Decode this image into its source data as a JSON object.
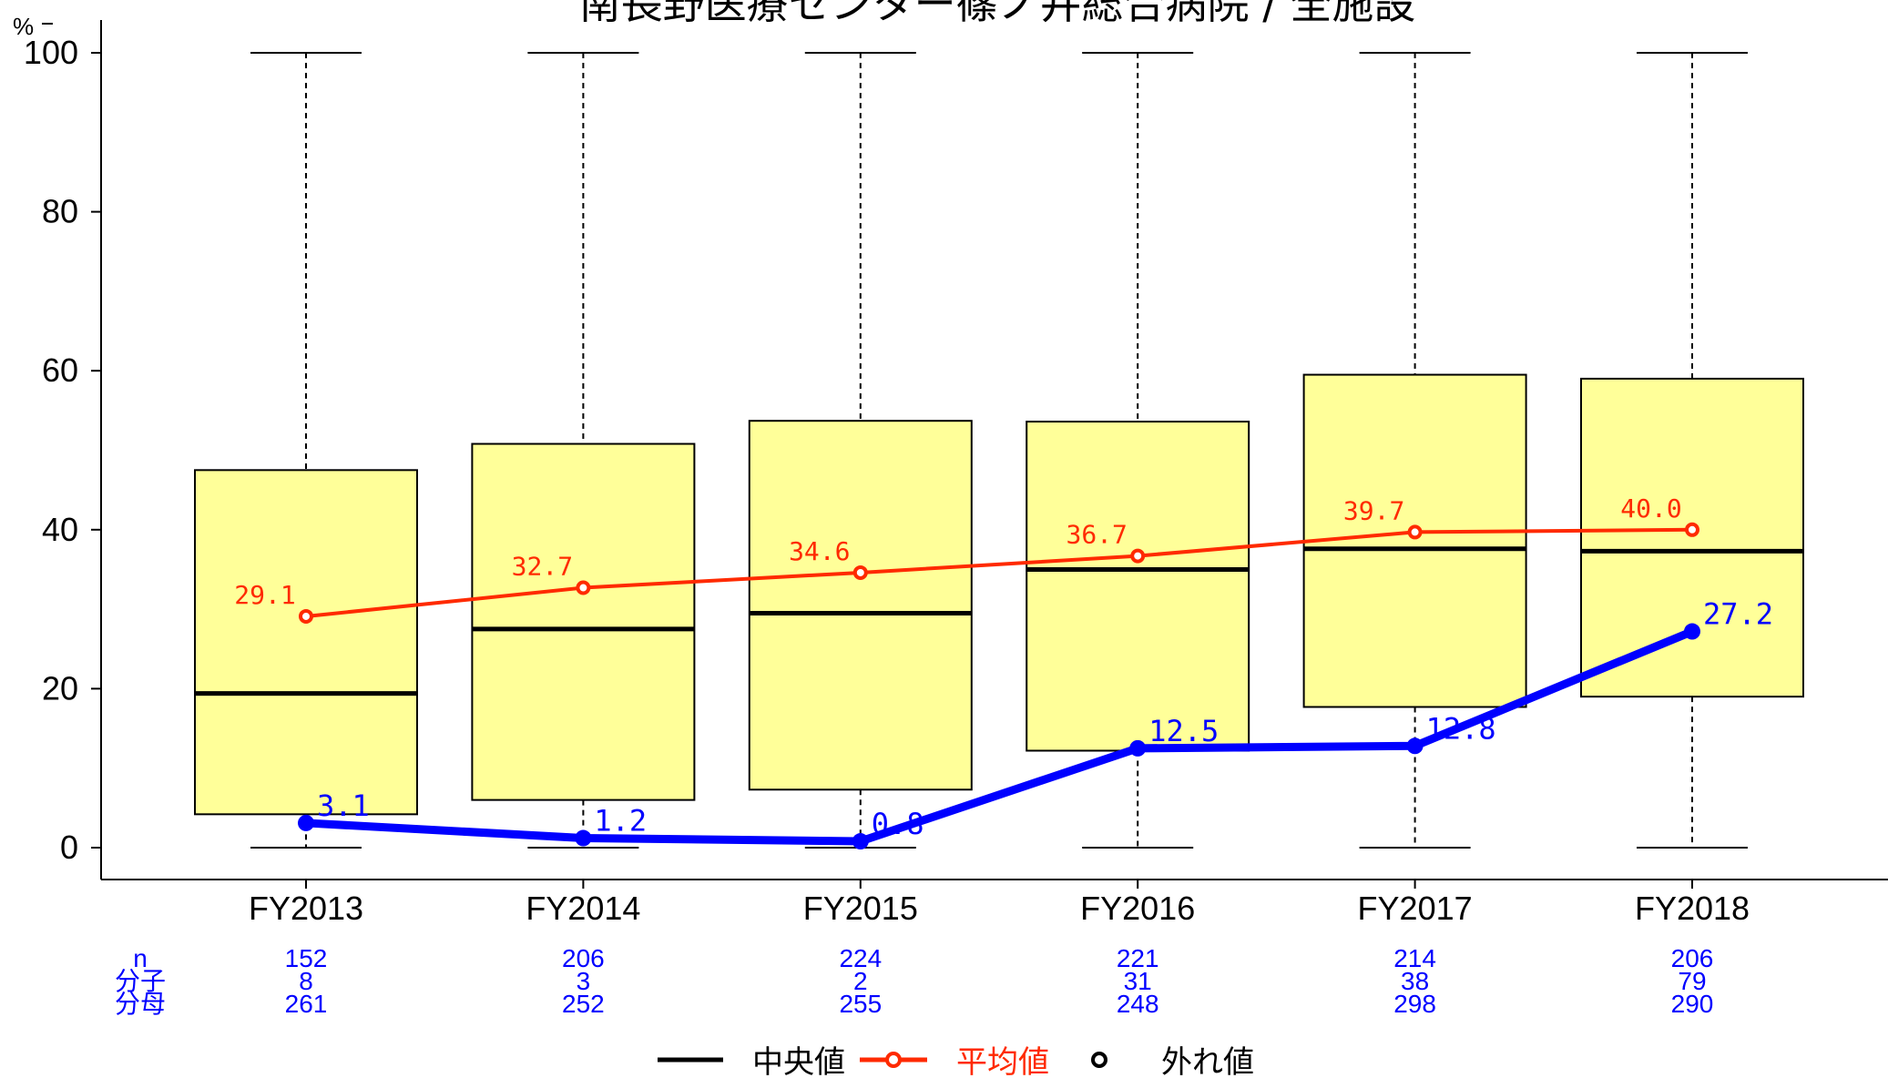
{
  "chart_data": {
    "type": "box",
    "title": "南長野医療センター篠ノ井総合病院 / 全施設",
    "unit": "%",
    "ylim": [
      0,
      100
    ],
    "yticks": [
      0,
      20,
      40,
      60,
      80,
      100
    ],
    "categories": [
      "FY2013",
      "FY2014",
      "FY2015",
      "FY2016",
      "FY2017",
      "FY2018"
    ],
    "boxes": [
      {
        "whisker_low": 0,
        "q1": 4.2,
        "median": 19.4,
        "q3": 47.5,
        "whisker_high": 100
      },
      {
        "whisker_low": 0,
        "q1": 6.0,
        "median": 27.5,
        "q3": 50.8,
        "whisker_high": 100
      },
      {
        "whisker_low": 0,
        "q1": 7.3,
        "median": 29.5,
        "q3": 53.7,
        "whisker_high": 100
      },
      {
        "whisker_low": 0,
        "q1": 12.2,
        "median": 35.0,
        "q3": 53.6,
        "whisker_high": 100
      },
      {
        "whisker_low": 0,
        "q1": 17.7,
        "median": 37.6,
        "q3": 59.5,
        "whisker_high": 100
      },
      {
        "whisker_low": 0,
        "q1": 19.0,
        "median": 37.3,
        "q3": 59.0,
        "whisker_high": 100
      }
    ],
    "mean": {
      "name": "平均値",
      "color": "#ff2a00",
      "values": [
        29.1,
        32.7,
        34.6,
        36.7,
        39.7,
        40.0
      ],
      "labels": [
        "29.1",
        "32.7",
        "34.6",
        "36.7",
        "39.7",
        "40.0"
      ]
    },
    "hospital": {
      "color": "#0000ff",
      "values": [
        3.1,
        1.2,
        0.8,
        12.5,
        12.8,
        27.2
      ],
      "labels": [
        "3.1",
        "1.2",
        "0.8",
        "12.5",
        "12.8",
        "27.2"
      ]
    },
    "counts": {
      "row_labels": [
        "n",
        "分子",
        "分母"
      ],
      "n": [
        "152",
        "206",
        "224",
        "221",
        "214",
        "206"
      ],
      "numerator": [
        "8",
        "3",
        "2",
        "31",
        "38",
        "79"
      ],
      "denominator": [
        "261",
        "252",
        "255",
        "248",
        "298",
        "290"
      ]
    },
    "legend": [
      {
        "label": "中央値",
        "color": "#000000"
      },
      {
        "label": "平均値",
        "color": "#ff2a00"
      },
      {
        "label": "外れ値",
        "color": "#000000"
      }
    ],
    "colors": {
      "box_fill": "#ffff99",
      "box_stroke": "#000000",
      "mean": "#ff2a00",
      "hospital": "#0000ff"
    }
  }
}
